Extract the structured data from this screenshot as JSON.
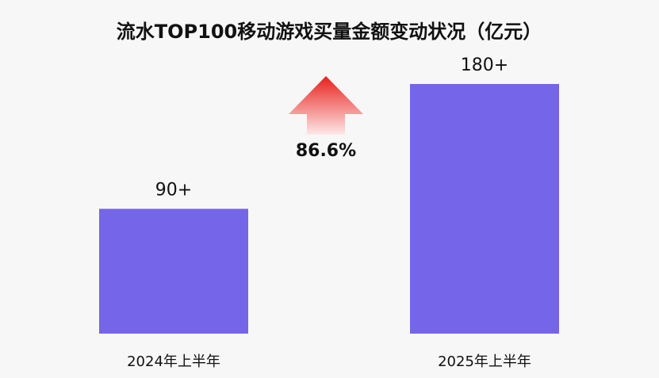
{
  "chart_data": {
    "type": "bar",
    "title": "流水TOP100移动游戏买量金额变动状况（亿元）",
    "categories": [
      "2024年上半年",
      "2025年上半年"
    ],
    "values": [
      90,
      180
    ],
    "value_labels": [
      "90+",
      "180+"
    ],
    "ylim": [
      0,
      180
    ],
    "grid": false,
    "legend": "none",
    "annotation": {
      "text": "86.6%",
      "icon": "up-arrow-icon"
    },
    "colors": {
      "bar": "#7565e8",
      "arrow_top": "#e8201c",
      "arrow_bottom": "#fde8e8",
      "text": "#111111",
      "background": "#f7f7f7"
    }
  }
}
